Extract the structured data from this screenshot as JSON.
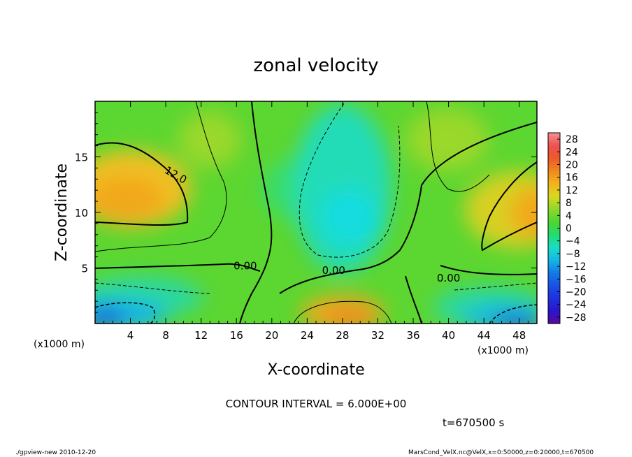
{
  "chart_data": {
    "type": "heatmap",
    "title": "zonal velocity",
    "xlabel": "X-coordinate",
    "ylabel": "Z-coordinate",
    "x_unit": "(x1000 m)",
    "y_unit": "(x1000 m)",
    "xlim": [
      0,
      50
    ],
    "ylim": [
      0,
      20
    ],
    "x_ticks": [
      "4",
      "8",
      "12",
      "16",
      "20",
      "24",
      "28",
      "32",
      "36",
      "40",
      "44",
      "48"
    ],
    "y_ticks": [
      "5",
      "10",
      "15"
    ],
    "colorbar": {
      "min": -30,
      "max": 30,
      "tick_values": [
        28,
        24,
        20,
        16,
        12,
        8,
        4,
        0,
        -4,
        -8,
        -12,
        -16,
        -20,
        -24,
        -28
      ],
      "tick_labels": [
        "28",
        "24",
        "20",
        "16",
        "12",
        "8",
        "4",
        "0",
        "−4",
        "−8",
        "−12",
        "−16",
        "−20",
        "−24",
        "−28"
      ]
    },
    "contour_interval": 6.0,
    "contour_labels": [
      {
        "text": "12.0",
        "x": 9,
        "z": 13.2
      },
      {
        "text": "0.00",
        "x": 17,
        "z": 5.0
      },
      {
        "text": "0.00",
        "x": 27,
        "z": 4.6
      },
      {
        "text": "0.00",
        "x": 40,
        "z": 3.9
      }
    ],
    "field_features": [
      {
        "name": "upper-left jet maximum",
        "x": 4,
        "z": 11.5,
        "value": 15
      },
      {
        "name": "bottom-middle maximum",
        "x": 28.5,
        "z": 1.0,
        "value": 15
      },
      {
        "name": "right jet maximum",
        "x": 49,
        "z": 10.5,
        "value": 15
      },
      {
        "name": "upper-middle minimum",
        "x": 29.5,
        "z": 9.0,
        "value": -12
      },
      {
        "name": "bottom-left minimum",
        "x": 2,
        "z": 1.0,
        "value": -16
      },
      {
        "name": "bottom-right minimum",
        "x": 47,
        "z": 1.2,
        "value": -16
      }
    ]
  },
  "texts": {
    "contour_interval": "CONTOUR INTERVAL = 6.000E+00",
    "time": "t=670500 s",
    "footer_left": "./gpview-new  2010-12-20",
    "footer_right": "MarsCond_VelX.nc@VelX,x=0:50000,z=0:20000,t=670500"
  }
}
